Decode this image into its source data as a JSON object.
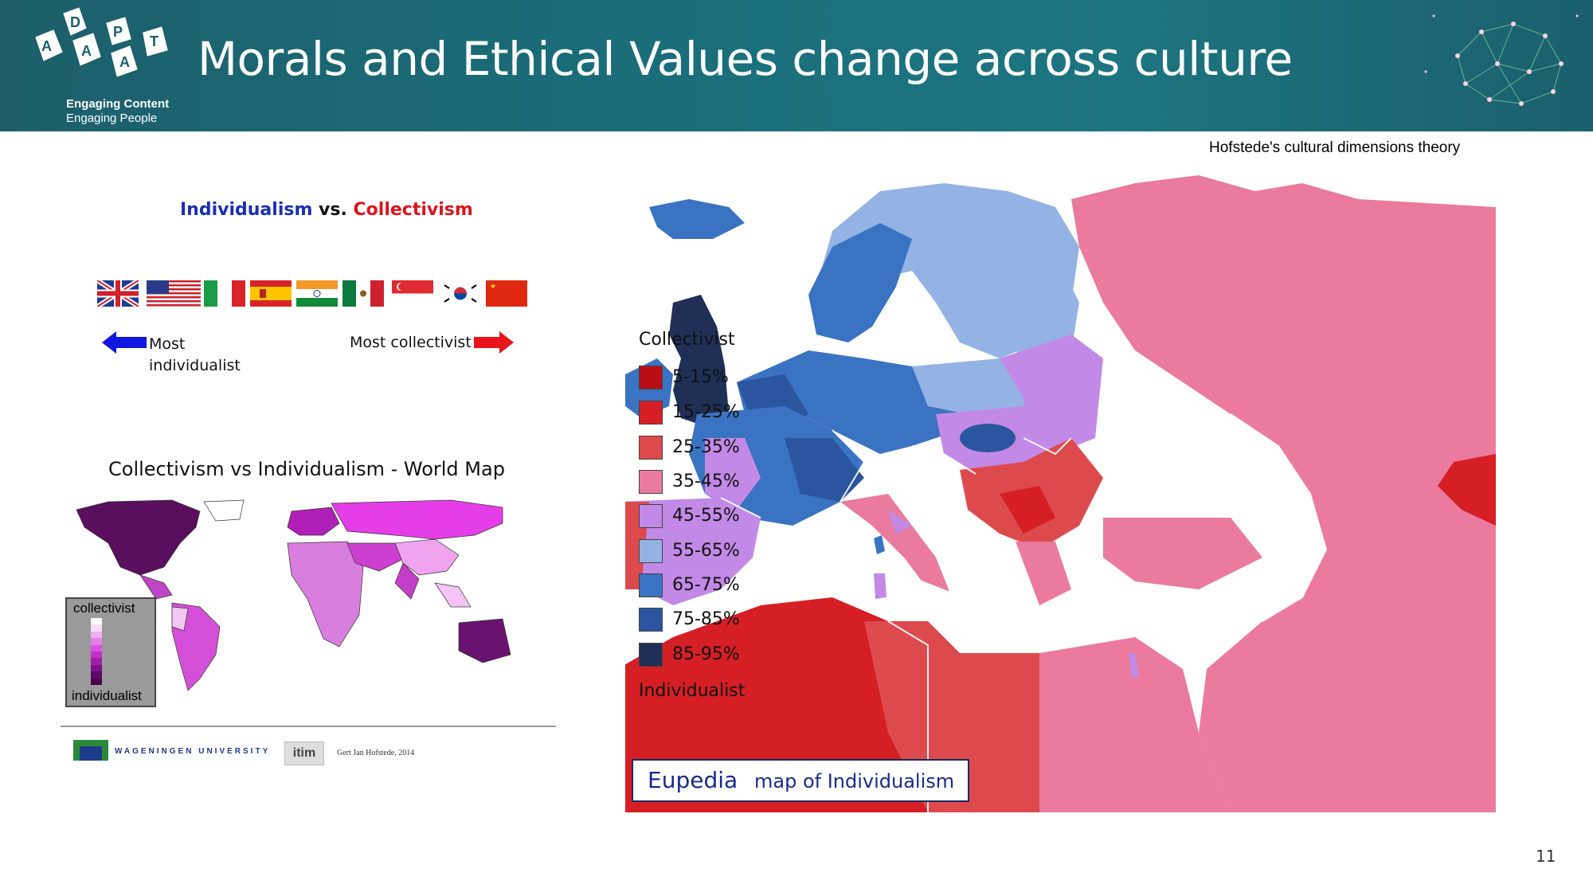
{
  "header": {
    "title": "Morals and Ethical Values change across culture",
    "logo_text": "ADAPT",
    "tagline_1": "Engaging Content",
    "tagline_2": "Engaging People"
  },
  "caption": "Hofstede's cultural dimensions theory",
  "page_number": "11",
  "left_panel": {
    "title_individualism": "Individualism",
    "title_vs": "vs.",
    "title_collectivism": "Collectivism",
    "flags": [
      "uk-flag-icon",
      "usa-flag-icon",
      "italy-flag-icon",
      "spain-flag-icon",
      "india-flag-icon",
      "mexico-flag-icon",
      "singapore-flag-icon",
      "south-korea-flag-icon",
      "china-flag-icon"
    ],
    "most_individualist": "Most individualist",
    "most_collectivist": "Most collectivist",
    "world_map_title": "Collectivism vs Individualism - World Map",
    "legend_top": "collectivist",
    "legend_bottom": "individualist",
    "university": "WAGENINGEN UNIVERSITY",
    "itim": "itim",
    "author": "Gert Jan Hofstede, 2014"
  },
  "europe_map": {
    "legend_header": "Collectivist",
    "legend_footer": "Individualist",
    "legend_items": [
      {
        "label": "5-15%",
        "color": "#b90e14"
      },
      {
        "label": "15-25%",
        "color": "#d51f25"
      },
      {
        "label": "25-35%",
        "color": "#dd4a4d"
      },
      {
        "label": "35-45%",
        "color": "#ea7a9e"
      },
      {
        "label": "45-55%",
        "color": "#c28ae6"
      },
      {
        "label": "55-65%",
        "color": "#94b3e4"
      },
      {
        "label": "65-75%",
        "color": "#3a73c2"
      },
      {
        "label": "75-85%",
        "color": "#2b559f"
      },
      {
        "label": "85-95%",
        "color": "#1f2f55"
      }
    ],
    "badge_brand": "Eupedia",
    "badge_rest": "map of Individualism"
  }
}
